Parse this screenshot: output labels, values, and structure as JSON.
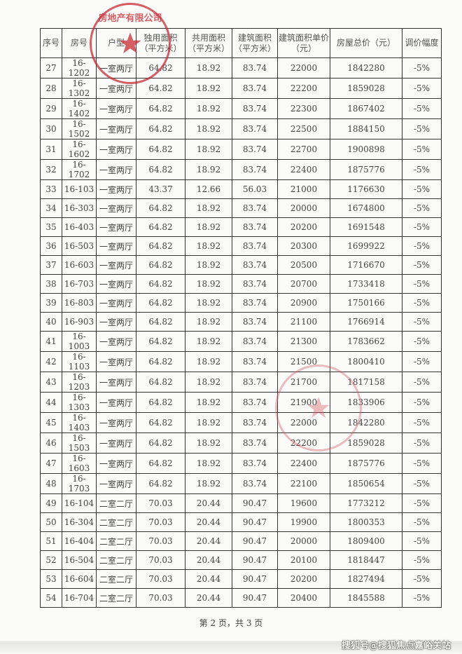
{
  "table": {
    "headers": [
      "序号",
      "房号",
      "户型",
      "独用面积（平方米）",
      "共用面积（平方米）",
      "建筑面积（平方米）",
      "建筑面积单价（元）",
      "房屋总价（元）",
      "调价幅度"
    ],
    "rows": [
      [
        "27",
        "16-1202",
        "一室两厅",
        "64.82",
        "18.92",
        "83.74",
        "22000",
        "1842280",
        "-5%"
      ],
      [
        "28",
        "16-1302",
        "一室两厅",
        "64.82",
        "18.92",
        "83.74",
        "22200",
        "1859028",
        "-5%"
      ],
      [
        "29",
        "16-1402",
        "一室两厅",
        "64.82",
        "18.92",
        "83.74",
        "22300",
        "1867402",
        "-5%"
      ],
      [
        "30",
        "16-1502",
        "一室两厅",
        "64.82",
        "18.92",
        "83.74",
        "22500",
        "1884150",
        "-5%"
      ],
      [
        "31",
        "16-1602",
        "一室两厅",
        "64.82",
        "18.92",
        "83.74",
        "22700",
        "1900898",
        "-5%"
      ],
      [
        "32",
        "16-1702",
        "一室两厅",
        "64.82",
        "18.92",
        "83.74",
        "22400",
        "1875776",
        "-5%"
      ],
      [
        "33",
        "16-103",
        "一室两厅",
        "43.37",
        "12.66",
        "56.03",
        "21000",
        "1176630",
        "-5%"
      ],
      [
        "34",
        "16-303",
        "一室两厅",
        "64.82",
        "18.92",
        "83.74",
        "20000",
        "1674800",
        "-5%"
      ],
      [
        "35",
        "16-403",
        "一室两厅",
        "64.82",
        "18.92",
        "83.74",
        "20200",
        "1691548",
        "-5%"
      ],
      [
        "36",
        "16-503",
        "一室两厅",
        "64.82",
        "18.92",
        "83.74",
        "20300",
        "1699922",
        "-5%"
      ],
      [
        "37",
        "16-603",
        "一室两厅",
        "64.82",
        "18.92",
        "83.74",
        "20500",
        "1716670",
        "-5%"
      ],
      [
        "38",
        "16-703",
        "一室两厅",
        "64.82",
        "18.92",
        "83.74",
        "20700",
        "1733418",
        "-5%"
      ],
      [
        "39",
        "16-803",
        "一室两厅",
        "64.82",
        "18.92",
        "83.74",
        "20900",
        "1750166",
        "-5%"
      ],
      [
        "40",
        "16-903",
        "一室两厅",
        "64.82",
        "18.92",
        "83.74",
        "21100",
        "1766914",
        "-5%"
      ],
      [
        "41",
        "16-1003",
        "一室两厅",
        "64.82",
        "18.92",
        "83.74",
        "21300",
        "1783662",
        "-5%"
      ],
      [
        "42",
        "16-1103",
        "一室两厅",
        "64.82",
        "18.92",
        "83.74",
        "21500",
        "1800410",
        "-5%"
      ],
      [
        "43",
        "16-1203",
        "一室两厅",
        "64.82",
        "18.92",
        "83.74",
        "21700",
        "1817158",
        "-5%"
      ],
      [
        "44",
        "16-1303",
        "一室两厅",
        "64.82",
        "18.92",
        "83.74",
        "21900",
        "1833906",
        "-5%"
      ],
      [
        "45",
        "16-1403",
        "一室两厅",
        "64.82",
        "18.92",
        "83.74",
        "22000",
        "1842280",
        "-5%"
      ],
      [
        "46",
        "16-1503",
        "一室两厅",
        "64.82",
        "18.92",
        "83.74",
        "22200",
        "1859028",
        "-5%"
      ],
      [
        "47",
        "16-1603",
        "一室两厅",
        "64.82",
        "18.92",
        "83.74",
        "22400",
        "1875776",
        "-5%"
      ],
      [
        "48",
        "16-1703",
        "一室两厅",
        "64.82",
        "18.92",
        "83.74",
        "22100",
        "1850654",
        "-5%"
      ],
      [
        "49",
        "16-104",
        "二室二厅",
        "70.03",
        "20.44",
        "90.47",
        "19600",
        "1773212",
        "-5%"
      ],
      [
        "50",
        "16-304",
        "二室二厅",
        "70.03",
        "20.44",
        "90.47",
        "19900",
        "1800353",
        "-5%"
      ],
      [
        "51",
        "16-404",
        "二室二厅",
        "70.03",
        "20.44",
        "90.47",
        "20000",
        "1809400",
        "-5%"
      ],
      [
        "52",
        "16-504",
        "二室二厅",
        "70.03",
        "20.44",
        "90.47",
        "20100",
        "1818447",
        "-5%"
      ],
      [
        "53",
        "16-604",
        "二室二厅",
        "70.03",
        "20.44",
        "90.47",
        "20200",
        "1827494",
        "-5%"
      ],
      [
        "54",
        "16-704",
        "二室二厅",
        "70.03",
        "20.44",
        "90.47",
        "20400",
        "1845588",
        "-5%"
      ]
    ]
  },
  "footer": {
    "page_label": "第 2 页，共 3 页"
  },
  "watermark": "搜狐号@搜狐焦点嘉峪关站",
  "stamp": {
    "text": "房地产有限公司",
    "color": "#c82832"
  }
}
